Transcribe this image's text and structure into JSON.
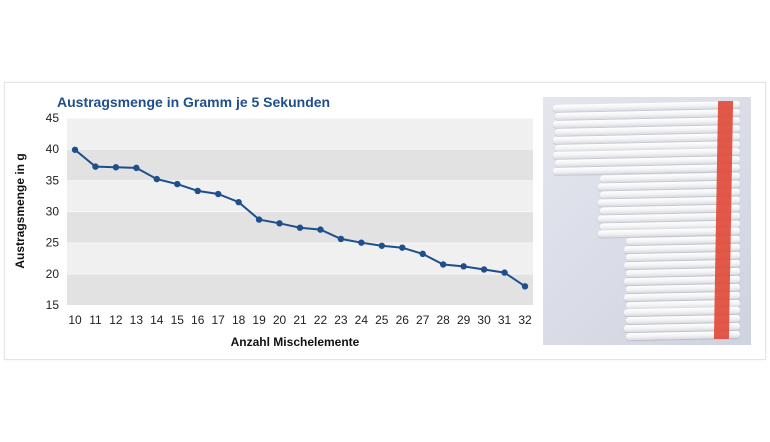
{
  "chart_data": {
    "type": "line",
    "title": "Austragsmenge in Gramm je 5 Sekunden",
    "xlabel": "Anzahl Mischelemente",
    "ylabel": "Austragsmenge in g",
    "x": [
      10,
      11,
      12,
      13,
      14,
      15,
      16,
      17,
      18,
      19,
      20,
      21,
      22,
      23,
      24,
      25,
      26,
      27,
      28,
      29,
      30,
      31,
      32
    ],
    "series": [
      {
        "values": [
          39.9,
          37.2,
          37.1,
          37.0,
          35.2,
          34.4,
          33.3,
          32.8,
          31.5,
          28.7,
          28.1,
          27.4,
          27.1,
          25.6,
          25.0,
          24.5,
          24.2,
          23.2,
          21.5,
          21.2,
          20.7,
          20.2,
          18.0
        ]
      }
    ],
    "ylim": [
      15,
      45
    ],
    "yticks": [
      15,
      20,
      25,
      30,
      35,
      40,
      45
    ],
    "grid": true,
    "line_color": "#1f4e8c",
    "band_colors": [
      "#e2e2e2",
      "#f0f0f0"
    ]
  },
  "photo": {
    "icon": "mixing-elements-photo"
  }
}
